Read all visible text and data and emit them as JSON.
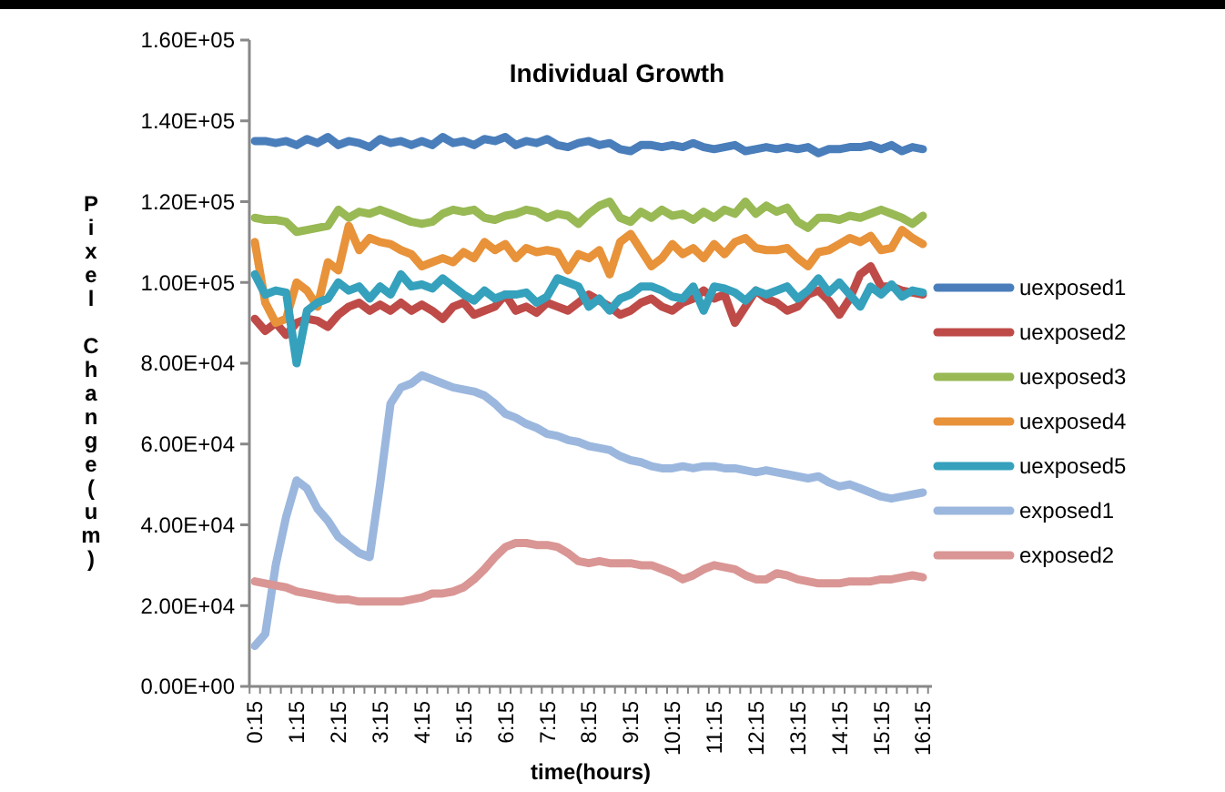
{
  "chart_data": {
    "type": "line",
    "title": "Individual Growth",
    "xlabel": "time(hours)",
    "ylabel": "Pixel Change(um)",
    "categories": [
      "0:15",
      null,
      null,
      null,
      "1:15",
      null,
      null,
      null,
      "2:15",
      null,
      null,
      null,
      "3:15",
      null,
      null,
      null,
      "4:15",
      null,
      null,
      null,
      "5:15",
      null,
      null,
      null,
      "6:15",
      null,
      null,
      null,
      "7:15",
      null,
      null,
      null,
      "8:15",
      null,
      null,
      null,
      "9:15",
      null,
      null,
      null,
      "10:15",
      null,
      null,
      null,
      "11:15",
      null,
      null,
      null,
      "12:15",
      null,
      null,
      null,
      "13:15",
      null,
      null,
      null,
      "14:15",
      null,
      null,
      null,
      "15:15",
      null,
      null,
      null,
      "16:15"
    ],
    "ylim": [
      0,
      160000
    ],
    "yticks": [
      {
        "value": 0,
        "label": "0.00E+00"
      },
      {
        "value": 20000,
        "label": "2.00E+04"
      },
      {
        "value": 40000,
        "label": "4.00E+04"
      },
      {
        "value": 60000,
        "label": "6.00E+04"
      },
      {
        "value": 80000,
        "label": "8.00E+04"
      },
      {
        "value": 100000,
        "label": "1.00E+05"
      },
      {
        "value": 120000,
        "label": "1.20E+05"
      },
      {
        "value": 140000,
        "label": "1.40E+05"
      },
      {
        "value": 160000,
        "label": "1.60E+05"
      }
    ],
    "grid": false,
    "legend": "right",
    "marker": "none",
    "line_style": "solid",
    "series": [
      {
        "name": "uexposed1",
        "color": "#4a7ebb",
        "values": [
          135000,
          135000,
          134500,
          135000,
          134000,
          135500,
          134500,
          136000,
          134000,
          135000,
          134500,
          133500,
          135500,
          134500,
          135000,
          134000,
          135000,
          134000,
          136000,
          134500,
          135000,
          134000,
          135500,
          135000,
          136000,
          134000,
          135000,
          134500,
          135500,
          134000,
          133500,
          134500,
          135000,
          134000,
          134500,
          133000,
          132500,
          134000,
          134000,
          133500,
          134000,
          133500,
          134500,
          133500,
          133000,
          133500,
          134000,
          132500,
          133000,
          133500,
          133000,
          133500,
          133000,
          133500,
          132000,
          133000,
          133000,
          133500,
          133500,
          134000,
          133000,
          134000,
          132500,
          133500,
          133000
        ]
      },
      {
        "name": "uexposed2",
        "color": "#be4b48",
        "values": [
          91000,
          88000,
          90000,
          87000,
          90000,
          91000,
          90500,
          89000,
          92000,
          94000,
          95000,
          93000,
          94500,
          93000,
          95000,
          93000,
          94500,
          93000,
          91000,
          94000,
          95000,
          92000,
          93000,
          94000,
          97000,
          93000,
          94000,
          92500,
          95000,
          94000,
          93000,
          95000,
          97000,
          95500,
          94000,
          92000,
          93000,
          95000,
          96000,
          94000,
          93000,
          95000,
          96000,
          98000,
          96000,
          97000,
          90000,
          94000,
          98000,
          96000,
          95000,
          93000,
          94000,
          97000,
          98000,
          95500,
          92000,
          96000,
          102000,
          104000,
          99000,
          99000,
          98000,
          97500,
          97000
        ]
      },
      {
        "name": "uexposed3",
        "color": "#98b954",
        "values": [
          116000,
          115500,
          115500,
          115000,
          112500,
          113000,
          113500,
          114000,
          118000,
          116000,
          117500,
          117000,
          118000,
          117000,
          116000,
          115000,
          114500,
          115000,
          117000,
          118000,
          117500,
          118000,
          116000,
          115500,
          116500,
          117000,
          118000,
          117500,
          116000,
          117000,
          116500,
          114500,
          117000,
          119000,
          120000,
          116000,
          115000,
          117500,
          116000,
          118000,
          116500,
          117000,
          115500,
          117500,
          116000,
          118000,
          117000,
          120000,
          117000,
          119000,
          117500,
          118500,
          115000,
          113500,
          116000,
          116000,
          115500,
          116500,
          116000,
          117000,
          118000,
          117000,
          116000,
          114500,
          116500
        ]
      },
      {
        "name": "uexposed4",
        "color": "#e8923a",
        "values": [
          110000,
          95000,
          90000,
          91000,
          100000,
          98000,
          94000,
          105000,
          103000,
          114000,
          108000,
          111000,
          110000,
          109500,
          108000,
          107000,
          104000,
          105000,
          106000,
          105000,
          107500,
          106000,
          110000,
          108000,
          109500,
          106000,
          108500,
          107500,
          108000,
          107500,
          103000,
          107000,
          106000,
          108000,
          102000,
          110000,
          112000,
          108000,
          104000,
          106000,
          109500,
          107000,
          108500,
          106000,
          109500,
          107000,
          110000,
          111000,
          108500,
          108000,
          108000,
          108500,
          106000,
          104000,
          107500,
          108000,
          109500,
          111000,
          110000,
          111500,
          108000,
          108500,
          113000,
          111000,
          109500
        ]
      },
      {
        "name": "uexposed5",
        "color": "#35a1bc",
        "values": [
          102000,
          97000,
          98000,
          97500,
          80000,
          93000,
          95000,
          96000,
          100000,
          98000,
          99000,
          96000,
          99000,
          97000,
          102000,
          99000,
          99500,
          98500,
          101000,
          99000,
          97000,
          95500,
          98000,
          96000,
          97000,
          97000,
          97500,
          95000,
          96500,
          101000,
          100000,
          99000,
          94000,
          96000,
          93000,
          96000,
          97000,
          99000,
          99000,
          98000,
          96500,
          96000,
          99000,
          93000,
          99000,
          98500,
          97500,
          95500,
          98000,
          97000,
          98000,
          99000,
          96000,
          98000,
          101000,
          97500,
          100000,
          97000,
          94000,
          99000,
          97000,
          99500,
          96500,
          98000,
          97500
        ]
      },
      {
        "name": "exposed1",
        "color": "#9bb7de",
        "values": [
          10000,
          13000,
          30000,
          42000,
          51000,
          49000,
          44000,
          41000,
          37000,
          35000,
          33000,
          32000,
          50000,
          70000,
          74000,
          75000,
          77000,
          76000,
          75000,
          74000,
          73500,
          73000,
          72000,
          70000,
          67500,
          66500,
          65000,
          64000,
          62500,
          62000,
          61000,
          60500,
          59500,
          59000,
          58500,
          57000,
          56000,
          55500,
          54500,
          54000,
          54000,
          54500,
          54000,
          54500,
          54500,
          54000,
          54000,
          53500,
          53000,
          53500,
          53000,
          52500,
          52000,
          51500,
          52000,
          50500,
          49500,
          50000,
          49000,
          48000,
          47000,
          46500,
          47000,
          47500,
          48000
        ]
      },
      {
        "name": "exposed2",
        "color": "#d99694",
        "values": [
          26000,
          25500,
          25000,
          24500,
          23500,
          23000,
          22500,
          22000,
          21500,
          21500,
          21000,
          21000,
          21000,
          21000,
          21000,
          21500,
          22000,
          23000,
          23000,
          23500,
          24500,
          26500,
          29000,
          32000,
          34500,
          35500,
          35500,
          35000,
          35000,
          34500,
          33000,
          31000,
          30500,
          31000,
          30500,
          30500,
          30500,
          30000,
          30000,
          29000,
          28000,
          26500,
          27500,
          29000,
          30000,
          29500,
          29000,
          27500,
          26500,
          26500,
          28000,
          27500,
          26500,
          26000,
          25500,
          25500,
          25500,
          26000,
          26000,
          26000,
          26500,
          26500,
          27000,
          27500,
          27000
        ]
      }
    ]
  }
}
